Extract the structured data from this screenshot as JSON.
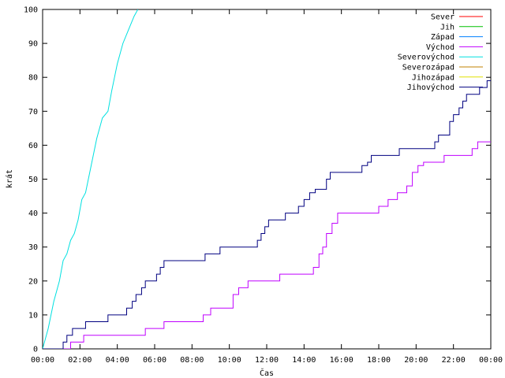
{
  "chart_data": {
    "type": "line",
    "title": "",
    "xlabel": "Čas",
    "ylabel": "krát",
    "xlim": [
      0,
      24
    ],
    "ylim": [
      0,
      100
    ],
    "x_ticks": [
      "00:00",
      "02:00",
      "04:00",
      "06:00",
      "08:00",
      "10:00",
      "12:00",
      "14:00",
      "16:00",
      "18:00",
      "20:00",
      "22:00",
      "00:00"
    ],
    "y_ticks": [
      "0",
      "10",
      "20",
      "30",
      "40",
      "50",
      "60",
      "70",
      "80",
      "90",
      "100"
    ],
    "grid": false,
    "legend_position": "top-right",
    "series": [
      {
        "name": "Sever",
        "color": "#ff0000",
        "points": []
      },
      {
        "name": "Jih",
        "color": "#00c000",
        "points": []
      },
      {
        "name": "Západ",
        "color": "#0080ff",
        "points": []
      },
      {
        "name": "Východ",
        "color": "#c000ff",
        "points": [
          [
            0,
            0
          ],
          [
            1.5,
            0
          ],
          [
            1.5,
            2
          ],
          [
            2.2,
            2
          ],
          [
            2.2,
            4
          ],
          [
            5.5,
            4
          ],
          [
            5.5,
            6
          ],
          [
            6.5,
            6
          ],
          [
            6.5,
            8
          ],
          [
            8.6,
            8
          ],
          [
            8.6,
            10
          ],
          [
            9,
            10
          ],
          [
            9,
            12
          ],
          [
            10.2,
            12
          ],
          [
            10.2,
            16
          ],
          [
            10.5,
            16
          ],
          [
            10.5,
            18
          ],
          [
            11,
            18
          ],
          [
            11,
            20
          ],
          [
            12.7,
            20
          ],
          [
            12.7,
            22
          ],
          [
            14.5,
            22
          ],
          [
            14.5,
            24
          ],
          [
            14.8,
            24
          ],
          [
            14.8,
            28
          ],
          [
            15,
            28
          ],
          [
            15,
            30
          ],
          [
            15.2,
            30
          ],
          [
            15.2,
            34
          ],
          [
            15.5,
            34
          ],
          [
            15.5,
            37
          ],
          [
            15.8,
            37
          ],
          [
            15.8,
            40
          ],
          [
            18,
            40
          ],
          [
            18,
            42
          ],
          [
            18.5,
            42
          ],
          [
            18.5,
            44
          ],
          [
            19,
            44
          ],
          [
            19,
            46
          ],
          [
            19.5,
            46
          ],
          [
            19.5,
            48
          ],
          [
            19.8,
            48
          ],
          [
            19.8,
            52
          ],
          [
            20.1,
            52
          ],
          [
            20.1,
            54
          ],
          [
            20.4,
            54
          ],
          [
            20.4,
            55
          ],
          [
            21.5,
            55
          ],
          [
            21.5,
            57
          ],
          [
            23,
            57
          ],
          [
            23,
            59
          ],
          [
            23.3,
            59
          ],
          [
            23.3,
            61
          ],
          [
            24,
            61
          ]
        ]
      },
      {
        "name": "Severovýchod",
        "color": "#00e0e0",
        "points": [
          [
            0,
            0
          ],
          [
            0.3,
            6
          ],
          [
            0.6,
            14
          ],
          [
            0.9,
            20
          ],
          [
            1.1,
            26
          ],
          [
            1.3,
            28
          ],
          [
            1.5,
            32
          ],
          [
            1.7,
            34
          ],
          [
            1.9,
            38
          ],
          [
            2.1,
            44
          ],
          [
            2.3,
            46
          ],
          [
            2.6,
            54
          ],
          [
            2.9,
            62
          ],
          [
            3.2,
            68
          ],
          [
            3.5,
            70
          ],
          [
            3.7,
            76
          ],
          [
            4,
            84
          ],
          [
            4.3,
            90
          ],
          [
            4.6,
            94
          ],
          [
            4.9,
            98
          ],
          [
            5.1,
            100
          ]
        ]
      },
      {
        "name": "Severozápad",
        "color": "#c08000",
        "points": []
      },
      {
        "name": "Jihozápad",
        "color": "#e0e000",
        "points": []
      },
      {
        "name": "Jihovýchod",
        "color": "#000080",
        "points": [
          [
            0,
            0
          ],
          [
            1.1,
            0
          ],
          [
            1.1,
            2
          ],
          [
            1.3,
            2
          ],
          [
            1.3,
            4
          ],
          [
            1.6,
            4
          ],
          [
            1.6,
            6
          ],
          [
            2.3,
            6
          ],
          [
            2.3,
            8
          ],
          [
            3.5,
            8
          ],
          [
            3.5,
            10
          ],
          [
            4.5,
            10
          ],
          [
            4.5,
            12
          ],
          [
            4.8,
            12
          ],
          [
            4.8,
            14
          ],
          [
            5,
            14
          ],
          [
            5,
            16
          ],
          [
            5.3,
            16
          ],
          [
            5.3,
            18
          ],
          [
            5.5,
            18
          ],
          [
            5.5,
            20
          ],
          [
            6.1,
            20
          ],
          [
            6.1,
            22
          ],
          [
            6.3,
            22
          ],
          [
            6.3,
            24
          ],
          [
            6.5,
            24
          ],
          [
            6.5,
            26
          ],
          [
            8.7,
            26
          ],
          [
            8.7,
            28
          ],
          [
            9.5,
            28
          ],
          [
            9.5,
            30
          ],
          [
            11.5,
            30
          ],
          [
            11.5,
            32
          ],
          [
            11.7,
            32
          ],
          [
            11.7,
            34
          ],
          [
            11.9,
            34
          ],
          [
            11.9,
            36
          ],
          [
            12.1,
            36
          ],
          [
            12.1,
            38
          ],
          [
            13,
            38
          ],
          [
            13,
            40
          ],
          [
            13.7,
            40
          ],
          [
            13.7,
            42
          ],
          [
            14,
            42
          ],
          [
            14,
            44
          ],
          [
            14.3,
            44
          ],
          [
            14.3,
            46
          ],
          [
            14.6,
            46
          ],
          [
            14.6,
            47
          ],
          [
            15.2,
            47
          ],
          [
            15.2,
            50
          ],
          [
            15.4,
            50
          ],
          [
            15.4,
            52
          ],
          [
            17.1,
            52
          ],
          [
            17.1,
            54
          ],
          [
            17.4,
            54
          ],
          [
            17.4,
            55
          ],
          [
            17.6,
            55
          ],
          [
            17.6,
            57
          ],
          [
            19.1,
            57
          ],
          [
            19.1,
            59
          ],
          [
            21,
            59
          ],
          [
            21,
            61
          ],
          [
            21.2,
            61
          ],
          [
            21.2,
            63
          ],
          [
            21.8,
            63
          ],
          [
            21.8,
            67
          ],
          [
            22,
            67
          ],
          [
            22,
            69
          ],
          [
            22.3,
            69
          ],
          [
            22.3,
            71
          ],
          [
            22.5,
            71
          ],
          [
            22.5,
            73
          ],
          [
            22.7,
            73
          ],
          [
            22.7,
            75
          ],
          [
            23.4,
            75
          ],
          [
            23.4,
            77
          ],
          [
            23.8,
            77
          ],
          [
            23.8,
            79
          ],
          [
            24,
            79
          ]
        ]
      }
    ]
  }
}
